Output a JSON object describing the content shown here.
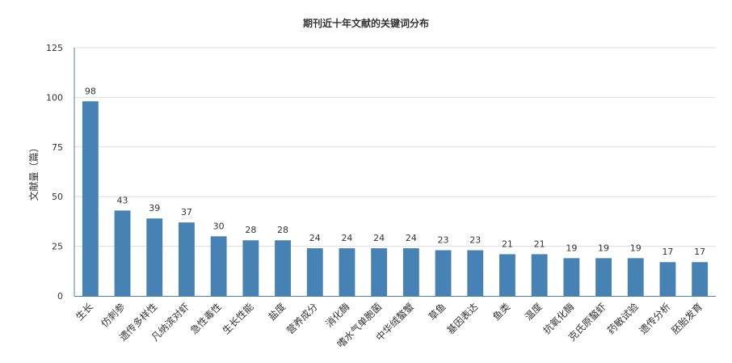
{
  "chart_data": {
    "type": "bar",
    "title": "期刊近十年文献的关键词分布",
    "xlabel": "",
    "ylabel": "文献量（篇）",
    "ylim": [
      0,
      125
    ],
    "yticks": [
      0,
      25,
      50,
      75,
      100,
      125
    ],
    "grid": true,
    "legend": "none",
    "categories": [
      "生长",
      "仿刺参",
      "遗传多样性",
      "凡纳滨对虾",
      "急性毒性",
      "生长性能",
      "盐度",
      "营养成分",
      "消化酶",
      "嗜水气单胞菌",
      "中华绒螯蟹",
      "草鱼",
      "基因表达",
      "鱼类",
      "温度",
      "抗氧化酶",
      "克氏原螯虾",
      "药敏试验",
      "遗传分析",
      "胚胎发育"
    ],
    "values": [
      98,
      43,
      39,
      37,
      30,
      28,
      28,
      24,
      24,
      24,
      24,
      23,
      23,
      21,
      21,
      19,
      19,
      19,
      17,
      17
    ],
    "colors": {
      "bar": "#4682b4",
      "grid": "#dddddd",
      "axis": "#4682b4"
    }
  }
}
